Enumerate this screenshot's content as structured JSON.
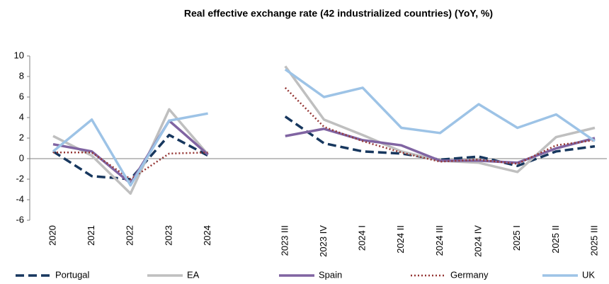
{
  "chart_data": {
    "type": "line",
    "title": "Real effective exchange rate (42 industrialized countries) (YoY, %)",
    "categories": [
      "2020",
      "2021",
      "2022",
      "2023",
      "2024",
      null,
      "2023 III",
      "2023 IV",
      "2024 I",
      "2024 II",
      "2024 III",
      "2024 IV",
      "2025 I",
      "2025 II",
      "2025 III"
    ],
    "series": [
      {
        "name": "Portugal",
        "color": "#17375e",
        "style": "dashed",
        "values": [
          0.7,
          -1.7,
          -2.0,
          2.3,
          0.3,
          null,
          4.1,
          1.5,
          0.7,
          0.5,
          -0.1,
          0.2,
          -0.7,
          0.7,
          1.2
        ]
      },
      {
        "name": "EA",
        "color": "#bfbfbf",
        "style": "solid",
        "values": [
          2.2,
          0.3,
          -3.4,
          4.8,
          0.4,
          null,
          9.0,
          3.8,
          2.3,
          0.7,
          -0.2,
          -0.4,
          -1.3,
          2.1,
          3.0
        ]
      },
      {
        "name": "Spain",
        "color": "#8064a2",
        "style": "solid",
        "values": [
          1.4,
          0.7,
          -2.4,
          3.7,
          0.4,
          null,
          2.2,
          2.9,
          1.8,
          1.3,
          -0.2,
          -0.2,
          -0.4,
          1.0,
          2.0
        ]
      },
      {
        "name": "Germany",
        "color": "#953735",
        "style": "dotted",
        "values": [
          0.6,
          0.6,
          -2.0,
          0.5,
          0.6,
          null,
          6.9,
          3.1,
          1.7,
          0.6,
          -0.3,
          -0.1,
          -0.5,
          1.3,
          1.8
        ]
      },
      {
        "name": "UK",
        "color": "#9dc3e6",
        "style": "solid",
        "values": [
          0.7,
          3.8,
          -2.6,
          3.7,
          4.4,
          null,
          8.7,
          6.0,
          6.9,
          3.0,
          2.5,
          5.3,
          3.0,
          4.3,
          1.7
        ]
      }
    ],
    "ylim": [
      -6,
      10
    ],
    "yticks": [
      -6,
      -4,
      -2,
      0,
      2,
      4,
      6,
      8,
      10
    ]
  }
}
